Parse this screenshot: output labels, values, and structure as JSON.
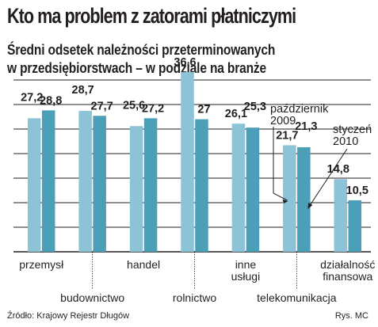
{
  "header": {
    "title": "Kto ma problem z zatorami płatniczymi",
    "subtitle_line1": "Średni odsetek należności przeterminowanych",
    "subtitle_line2": "w przedsiębiorstwach – w podziale na branże"
  },
  "footer": {
    "source": "Źródło: Krajowy Rejestr Długów",
    "credit": "Rys. MC"
  },
  "chart_data": {
    "type": "bar",
    "title": "Kto ma problem z zatorami płatniczymi",
    "subtitle": "Średni odsetek należności przeterminowanych w przedsiębiorstwach – w podziale na branże",
    "categories": [
      "przemysł",
      "budownictwo",
      "handel",
      "rolnictwo",
      "inne usługi",
      "telekomunikacja",
      "działalność finansowa"
    ],
    "category_lines": [
      [
        "przemysł"
      ],
      [
        "budownictwo"
      ],
      [
        "handel"
      ],
      [
        "rolnictwo"
      ],
      [
        "inne",
        "usługi"
      ],
      [
        "telekomunikacja"
      ],
      [
        "działalność",
        "finansowa"
      ]
    ],
    "series": [
      {
        "name": "październik 2009",
        "name_lines": [
          "październik",
          "2009"
        ],
        "values": [
          27.2,
          28.7,
          25.6,
          36.6,
          26.1,
          21.7,
          14.8
        ],
        "labels": [
          "27,2",
          "28,7",
          "25,6",
          "36,6",
          "26,1",
          "21,7",
          "14,8"
        ],
        "color": "#8cc3d6"
      },
      {
        "name": "styczeń 2010",
        "name_lines": [
          "styczeń",
          "2010"
        ],
        "values": [
          28.8,
          27.7,
          27.2,
          27.0,
          25.3,
          21.3,
          10.5
        ],
        "labels": [
          "28,8",
          "27,7",
          "27,2",
          "27",
          "25,3",
          "21,3",
          "10,5"
        ],
        "color": "#4b9fb7"
      }
    ],
    "ylim": [
      0,
      40
    ],
    "grid": true,
    "gridline_values": [
      0,
      5,
      10,
      15,
      20,
      25,
      30,
      35
    ],
    "xlabel": "",
    "ylabel": "",
    "legend": "annotations with arrows pointing to the telekomunikacja bars",
    "colors": {
      "background": "#ffffff",
      "grid": "#231f20",
      "text": "#231f20",
      "divider": "#231f20"
    }
  }
}
